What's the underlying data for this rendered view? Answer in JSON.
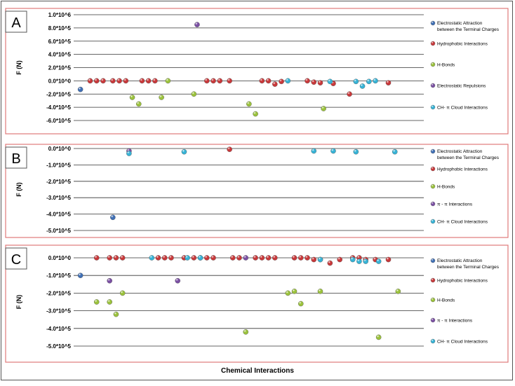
{
  "footer": {
    "xlabel": "Chemical Interactions"
  },
  "colors": {
    "electrostatic_attraction": "#3f6fb5",
    "hydrophobic": "#c8383a",
    "hbond": "#9bc23c",
    "purple": "#7a4fa3",
    "ch_pi": "#36b3d6",
    "panel_border": "#e07a7a"
  },
  "chart_data": [
    {
      "type": "scatter",
      "panel_label": "A",
      "ylabel": "F (N)",
      "ylim": [
        -700000,
        1000000
      ],
      "yticks": [
        {
          "value": 1000000,
          "label": "1.0*10^6"
        },
        {
          "value": 800000,
          "label": "8.0*10^5"
        },
        {
          "value": 600000,
          "label": "6.0*10^5"
        },
        {
          "value": 400000,
          "label": "4.0*10^5"
        },
        {
          "value": 200000,
          "label": "2.0*10^5"
        },
        {
          "value": 0,
          "label": "0.0*10^0"
        },
        {
          "value": -200000,
          "label": "-2.0*10^5"
        },
        {
          "value": -400000,
          "label": "-4.0*10^5"
        },
        {
          "value": -600000,
          "label": "-6.0*10^5"
        }
      ],
      "xlim": [
        0,
        100
      ],
      "legend_position": "right",
      "series": [
        {
          "name": "Electrostatic Attraction between the Terminal Charges",
          "color_key": "electrostatic_attraction",
          "points": [
            {
              "x": 1,
              "y": -130000
            }
          ]
        },
        {
          "name": "Hydrophobic Interactions",
          "color_key": "hydrophobic",
          "points": [
            {
              "x": 4,
              "y": 0
            },
            {
              "x": 6,
              "y": 0
            },
            {
              "x": 8,
              "y": 0
            },
            {
              "x": 11,
              "y": 0
            },
            {
              "x": 13,
              "y": 0
            },
            {
              "x": 15,
              "y": 0
            },
            {
              "x": 20,
              "y": 0
            },
            {
              "x": 22,
              "y": 0
            },
            {
              "x": 24,
              "y": 0
            },
            {
              "x": 40,
              "y": 0
            },
            {
              "x": 42,
              "y": 0
            },
            {
              "x": 44,
              "y": 0
            },
            {
              "x": 47,
              "y": 0
            },
            {
              "x": 57,
              "y": 0
            },
            {
              "x": 59,
              "y": 0
            },
            {
              "x": 61,
              "y": -50000
            },
            {
              "x": 63,
              "y": -10000
            },
            {
              "x": 71,
              "y": 0
            },
            {
              "x": 73,
              "y": -20000
            },
            {
              "x": 75,
              "y": -30000
            },
            {
              "x": 79,
              "y": -40000
            },
            {
              "x": 84,
              "y": -200000
            },
            {
              "x": 96,
              "y": -30000
            }
          ]
        },
        {
          "name": "H-Bonds",
          "color_key": "hbond",
          "points": [
            {
              "x": 17,
              "y": -250000
            },
            {
              "x": 19,
              "y": -350000
            },
            {
              "x": 26,
              "y": -250000
            },
            {
              "x": 28,
              "y": 0
            },
            {
              "x": 36,
              "y": -200000
            },
            {
              "x": 53,
              "y": -350000
            },
            {
              "x": 55,
              "y": -500000
            },
            {
              "x": 76,
              "y": -420000
            }
          ]
        },
        {
          "name": "Electrostatic Repulsions",
          "color_key": "purple",
          "points": [
            {
              "x": 37,
              "y": 850000
            }
          ]
        },
        {
          "name": "CH- π Cloud Interactions",
          "color_key": "ch_pi",
          "points": [
            {
              "x": 65,
              "y": 0
            },
            {
              "x": 78,
              "y": -10000
            },
            {
              "x": 86,
              "y": -10000
            },
            {
              "x": 88,
              "y": -80000
            },
            {
              "x": 90,
              "y": -10000
            },
            {
              "x": 92,
              "y": 0
            }
          ]
        }
      ]
    },
    {
      "type": "scatter",
      "panel_label": "B",
      "ylabel": "F (N)",
      "ylim": [
        -520000,
        20000
      ],
      "yticks": [
        {
          "value": 0,
          "label": "0.0*10^0"
        },
        {
          "value": -100000,
          "label": "-1.0*10^5"
        },
        {
          "value": -200000,
          "label": "-2.0*10^5"
        },
        {
          "value": -300000,
          "label": "-3.0*10^5"
        },
        {
          "value": -400000,
          "label": "-4.0*10^5"
        },
        {
          "value": -500000,
          "label": "-5.0*10^5"
        }
      ],
      "xlim": [
        0,
        100
      ],
      "legend_position": "right",
      "series": [
        {
          "name": "Electrostatic Attraction between the Terminal Charges",
          "color_key": "electrostatic_attraction",
          "points": [
            {
              "x": 11,
              "y": -420000
            }
          ]
        },
        {
          "name": "Hydrophobic Interactions",
          "color_key": "hydrophobic",
          "points": [
            {
              "x": 47,
              "y": -5000
            }
          ]
        },
        {
          "name": "H-Bonds",
          "color_key": "hbond",
          "points": []
        },
        {
          "name": "π - π  Interactions",
          "color_key": "purple",
          "points": [
            {
              "x": 16,
              "y": -15000
            }
          ]
        },
        {
          "name": "CH- π Cloud Interactions",
          "color_key": "ch_pi",
          "points": [
            {
              "x": 16,
              "y": -30000
            },
            {
              "x": 33,
              "y": -20000
            },
            {
              "x": 73,
              "y": -15000
            },
            {
              "x": 79,
              "y": -15000
            },
            {
              "x": 86,
              "y": -20000
            },
            {
              "x": 98,
              "y": -20000
            }
          ]
        }
      ]
    },
    {
      "type": "scatter",
      "panel_label": "C",
      "ylabel": "F (N)",
      "ylim": [
        -520000,
        20000
      ],
      "yticks": [
        {
          "value": 0,
          "label": "0.0*10^0"
        },
        {
          "value": -100000,
          "label": "-1.0*10^5"
        },
        {
          "value": -200000,
          "label": "-2.0*10^5"
        },
        {
          "value": -300000,
          "label": "-3.0*10^5"
        },
        {
          "value": -400000,
          "label": "-4.0*10^5"
        },
        {
          "value": -500000,
          "label": "-5.0*10^5"
        }
      ],
      "xlim": [
        0,
        100
      ],
      "legend_position": "right",
      "series": [
        {
          "name": "Electrostatic Attraction between the Terminal Charges",
          "color_key": "electrostatic_attraction",
          "points": [
            {
              "x": 1,
              "y": -100000
            }
          ]
        },
        {
          "name": "Hydrophobic Interactions",
          "color_key": "hydrophobic",
          "points": [
            {
              "x": 6,
              "y": 0
            },
            {
              "x": 10,
              "y": 0
            },
            {
              "x": 12,
              "y": 0
            },
            {
              "x": 14,
              "y": 0
            },
            {
              "x": 25,
              "y": 0
            },
            {
              "x": 27,
              "y": 0
            },
            {
              "x": 29,
              "y": 0
            },
            {
              "x": 33,
              "y": 0
            },
            {
              "x": 36,
              "y": 0
            },
            {
              "x": 40,
              "y": 0
            },
            {
              "x": 42,
              "y": 0
            },
            {
              "x": 48,
              "y": 0
            },
            {
              "x": 50,
              "y": 0
            },
            {
              "x": 55,
              "y": 0
            },
            {
              "x": 57,
              "y": 0
            },
            {
              "x": 59,
              "y": 0
            },
            {
              "x": 61,
              "y": 0
            },
            {
              "x": 67,
              "y": 0
            },
            {
              "x": 69,
              "y": 0
            },
            {
              "x": 71,
              "y": 0
            },
            {
              "x": 73,
              "y": -10000
            },
            {
              "x": 75,
              "y": -10000
            },
            {
              "x": 78,
              "y": -30000
            },
            {
              "x": 81,
              "y": -10000
            },
            {
              "x": 85,
              "y": 0
            },
            {
              "x": 87,
              "y": 0
            },
            {
              "x": 89,
              "y": -10000
            },
            {
              "x": 92,
              "y": -10000
            },
            {
              "x": 96,
              "y": -10000
            }
          ]
        },
        {
          "name": "H-Bonds",
          "color_key": "hbond",
          "points": [
            {
              "x": 6,
              "y": -250000
            },
            {
              "x": 10,
              "y": -250000
            },
            {
              "x": 12,
              "y": -320000
            },
            {
              "x": 14,
              "y": -200000
            },
            {
              "x": 52,
              "y": -420000
            },
            {
              "x": 65,
              "y": -200000
            },
            {
              "x": 67,
              "y": -190000
            },
            {
              "x": 69,
              "y": -260000
            },
            {
              "x": 75,
              "y": -190000
            },
            {
              "x": 93,
              "y": -450000
            },
            {
              "x": 99,
              "y": -190000
            }
          ]
        },
        {
          "name": "π - π  Interactions",
          "color_key": "purple",
          "points": [
            {
              "x": 10,
              "y": -130000
            },
            {
              "x": 31,
              "y": -130000
            },
            {
              "x": 38,
              "y": 0
            },
            {
              "x": 52,
              "y": 0
            }
          ]
        },
        {
          "name": "CH- π Cloud Interactions",
          "color_key": "ch_pi",
          "points": [
            {
              "x": 23,
              "y": 0
            },
            {
              "x": 34,
              "y": 0
            },
            {
              "x": 38,
              "y": 0
            },
            {
              "x": 75,
              "y": -10000
            },
            {
              "x": 85,
              "y": -10000
            },
            {
              "x": 87,
              "y": -20000
            },
            {
              "x": 89,
              "y": -20000
            },
            {
              "x": 93,
              "y": -20000
            }
          ]
        }
      ]
    }
  ]
}
